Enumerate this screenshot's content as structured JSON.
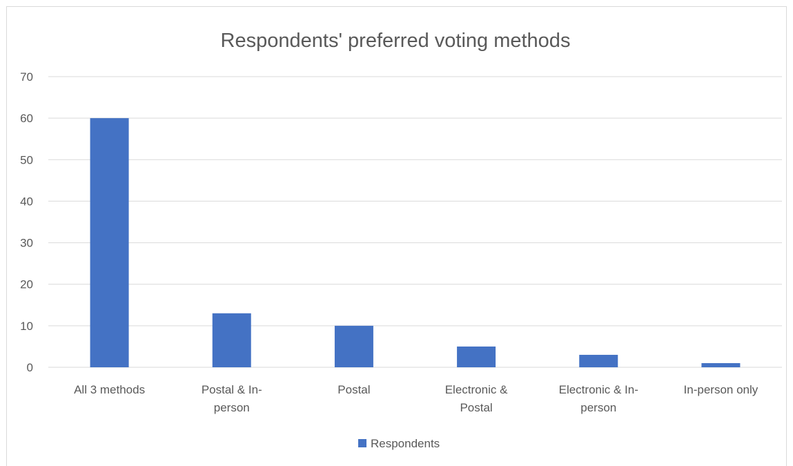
{
  "chart_data": {
    "type": "bar",
    "title": "Respondents' preferred voting methods",
    "xlabel": "",
    "ylabel": "",
    "categories": [
      [
        "All 3 methods"
      ],
      [
        "Postal & In-",
        "person"
      ],
      [
        "Postal"
      ],
      [
        "Electronic &",
        "Postal"
      ],
      [
        "Electronic & In-",
        "person"
      ],
      [
        "In-person only"
      ]
    ],
    "series": [
      {
        "name": "Respondents",
        "values": [
          60,
          13,
          10,
          5,
          3,
          1
        ],
        "color": "#4472c4"
      }
    ],
    "ylim": [
      0,
      70
    ],
    "yticks": [
      0,
      10,
      20,
      30,
      40,
      50,
      60,
      70
    ],
    "grid": true,
    "gridline_color": "#d9d9d9",
    "legend_position": "bottom"
  }
}
